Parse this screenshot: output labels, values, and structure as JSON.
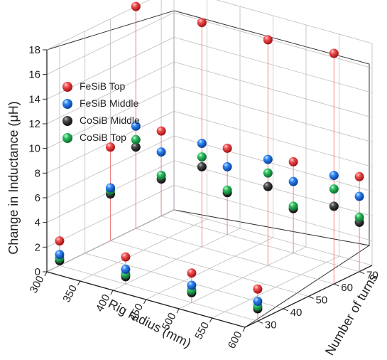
{
  "chart_data": {
    "type": "scatter3d",
    "ylabel": "Change in Inductance (μH)",
    "xlabel": "Rig radius (mm)",
    "zlabel": "Number of turns",
    "x_ticks": [
      "300",
      "350",
      "400",
      "450",
      "500",
      "550",
      "600"
    ],
    "y_ticks": [
      "0",
      "2",
      "4",
      "6",
      "8",
      "10",
      "12",
      "14",
      "16",
      "18"
    ],
    "z_ticks": [
      "30",
      "40",
      "50",
      "60",
      "70"
    ],
    "xlim": [
      300,
      600
    ],
    "ylim": [
      0,
      18
    ],
    "zlim": [
      25,
      75
    ],
    "grid": true,
    "drop_lines": true,
    "legend_position": "top-left",
    "x_values": [
      300,
      400,
      500,
      600
    ],
    "z_values": [
      30,
      70
    ],
    "series": [
      {
        "name": "FeSiB Top",
        "color": "#e8292c",
        "points": [
          {
            "x": 300,
            "z": 30,
            "y": 2.0
          },
          {
            "x": 400,
            "z": 30,
            "y": 2.2
          },
          {
            "x": 500,
            "z": 30,
            "y": 2.4
          },
          {
            "x": 600,
            "z": 30,
            "y": 2.6
          },
          {
            "x": 300,
            "z": 70,
            "y": 6.9
          },
          {
            "x": 400,
            "z": 70,
            "y": 7.0
          },
          {
            "x": 500,
            "z": 70,
            "y": 7.4
          },
          {
            "x": 600,
            "z": 70,
            "y": 7.7
          },
          {
            "x": 300,
            "z": 50,
            "y": 7.6
          },
          {
            "x": 300,
            "z": 60,
            "y": 18.0
          },
          {
            "x": 400,
            "z": 60,
            "y": 18.2
          },
          {
            "x": 500,
            "z": 60,
            "y": 18.3
          },
          {
            "x": 600,
            "z": 60,
            "y": 18.7
          }
        ]
      },
      {
        "name": "FeSiB Middle",
        "color": "#1c6fe0",
        "points": [
          {
            "x": 300,
            "z": 30,
            "y": 0.9
          },
          {
            "x": 400,
            "z": 30,
            "y": 1.2
          },
          {
            "x": 500,
            "z": 30,
            "y": 1.4
          },
          {
            "x": 600,
            "z": 30,
            "y": 1.6
          },
          {
            "x": 300,
            "z": 50,
            "y": 4.3
          },
          {
            "x": 300,
            "z": 60,
            "y": 8.3
          },
          {
            "x": 400,
            "z": 60,
            "y": 8.4
          },
          {
            "x": 500,
            "z": 60,
            "y": 8.6
          },
          {
            "x": 600,
            "z": 60,
            "y": 8.8
          },
          {
            "x": 300,
            "z": 70,
            "y": 5.2
          },
          {
            "x": 400,
            "z": 70,
            "y": 5.5
          },
          {
            "x": 500,
            "z": 70,
            "y": 5.8
          },
          {
            "x": 600,
            "z": 70,
            "y": 6.1
          }
        ]
      },
      {
        "name": "CoSiB Middle",
        "color": "#2d2d2d",
        "points": [
          {
            "x": 300,
            "z": 30,
            "y": 0.4
          },
          {
            "x": 400,
            "z": 30,
            "y": 0.6
          },
          {
            "x": 500,
            "z": 30,
            "y": 0.8
          },
          {
            "x": 600,
            "z": 30,
            "y": 1.0
          },
          {
            "x": 300,
            "z": 50,
            "y": 3.8
          },
          {
            "x": 300,
            "z": 60,
            "y": 6.6
          },
          {
            "x": 400,
            "z": 60,
            "y": 6.5
          },
          {
            "x": 500,
            "z": 60,
            "y": 6.4
          },
          {
            "x": 600,
            "z": 60,
            "y": 6.3
          },
          {
            "x": 300,
            "z": 70,
            "y": 3.0
          },
          {
            "x": 400,
            "z": 70,
            "y": 3.4
          },
          {
            "x": 500,
            "z": 70,
            "y": 3.6
          },
          {
            "x": 600,
            "z": 70,
            "y": 4.0
          }
        ]
      },
      {
        "name": "CoSiB Top",
        "color": "#1fa84f",
        "points": [
          {
            "x": 300,
            "z": 30,
            "y": 0.6
          },
          {
            "x": 400,
            "z": 30,
            "y": 0.8
          },
          {
            "x": 500,
            "z": 30,
            "y": 1.0
          },
          {
            "x": 600,
            "z": 30,
            "y": 1.2
          },
          {
            "x": 300,
            "z": 50,
            "y": 4.1
          },
          {
            "x": 300,
            "z": 60,
            "y": 7.2
          },
          {
            "x": 400,
            "z": 60,
            "y": 7.3
          },
          {
            "x": 500,
            "z": 60,
            "y": 7.5
          },
          {
            "x": 600,
            "z": 60,
            "y": 7.7
          },
          {
            "x": 300,
            "z": 70,
            "y": 3.3
          },
          {
            "x": 400,
            "z": 70,
            "y": 3.6
          },
          {
            "x": 500,
            "z": 70,
            "y": 3.8
          },
          {
            "x": 600,
            "z": 70,
            "y": 4.4
          }
        ]
      }
    ]
  }
}
